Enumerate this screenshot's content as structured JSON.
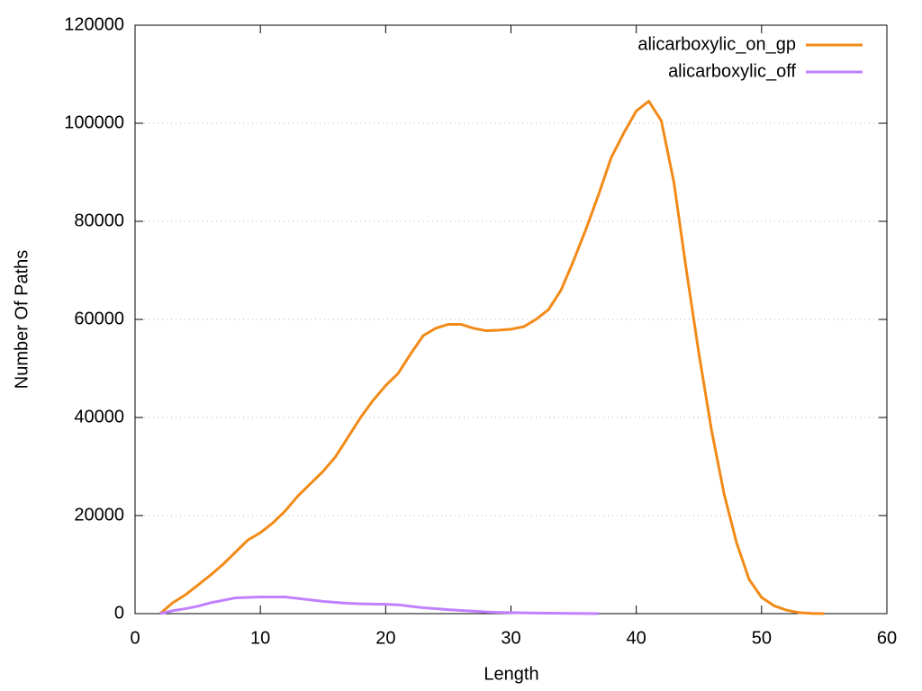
{
  "chart_data": {
    "type": "line",
    "xlabel": "Length",
    "ylabel": "Number Of Paths",
    "xlim": [
      0,
      60
    ],
    "xticks": [
      0,
      10,
      20,
      30,
      40,
      50,
      60
    ],
    "ylim": [
      0,
      120000
    ],
    "yticks": [
      0,
      20000,
      40000,
      60000,
      80000,
      100000,
      120000
    ],
    "grid": true,
    "legend": "top-right",
    "series": [
      {
        "name": "alicarboxylic_on_gp",
        "color": "#f28a17",
        "x": [
          2,
          3,
          4,
          5,
          6,
          7,
          8,
          9,
          10,
          11,
          12,
          13,
          14,
          15,
          16,
          17,
          18,
          19,
          20,
          21,
          22,
          23,
          24,
          25,
          26,
          27,
          28,
          29,
          30,
          31,
          32,
          33,
          34,
          35,
          36,
          37,
          38,
          39,
          40,
          41,
          42,
          43,
          44,
          45,
          46,
          47,
          48,
          49,
          50,
          51,
          52,
          53,
          54,
          55
        ],
        "values": [
          0,
          2200,
          3800,
          5800,
          7800,
          10000,
          12500,
          15000,
          16500,
          18500,
          21000,
          24000,
          26500,
          29000,
          32000,
          36000,
          40000,
          43500,
          46500,
          49000,
          53000,
          56700,
          58200,
          59000,
          59000,
          58200,
          57700,
          57800,
          58000,
          58500,
          60000,
          62000,
          66000,
          72000,
          78500,
          85500,
          93000,
          98000,
          102500,
          104500,
          100500,
          88000,
          70000,
          53000,
          37500,
          24500,
          14500,
          7000,
          3300,
          1600,
          700,
          200,
          50,
          0
        ]
      },
      {
        "name": "alicarboxylic_off",
        "color": "#c080ff",
        "x": [
          2,
          3,
          4,
          5,
          6,
          7,
          8,
          9,
          10,
          11,
          12,
          13,
          14,
          15,
          16,
          17,
          18,
          19,
          20,
          21,
          22,
          23,
          24,
          25,
          26,
          27,
          28,
          29,
          30,
          31,
          32,
          33,
          34,
          35,
          36,
          37
        ],
        "values": [
          0,
          600,
          1000,
          1500,
          2200,
          2700,
          3200,
          3300,
          3400,
          3400,
          3400,
          3100,
          2800,
          2500,
          2300,
          2100,
          2000,
          1950,
          1900,
          1800,
          1500,
          1200,
          1000,
          800,
          650,
          500,
          350,
          250,
          200,
          150,
          120,
          90,
          60,
          40,
          20,
          10
        ]
      }
    ]
  }
}
